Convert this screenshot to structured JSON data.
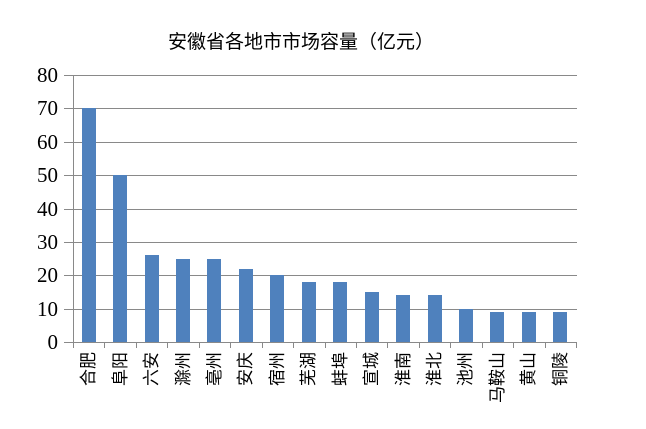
{
  "chart_data": {
    "type": "bar",
    "title": "安徽省各地市市场容量（亿元）",
    "categories": [
      "合肥",
      "阜阳",
      "六安",
      "滁州",
      "亳州",
      "安庆",
      "宿州",
      "芜湖",
      "蚌埠",
      "宣城",
      "淮南",
      "淮北",
      "池州",
      "马鞍山",
      "黄山",
      "铜陵"
    ],
    "values": [
      70,
      50,
      26,
      25,
      25,
      22,
      20,
      18,
      18,
      15,
      14,
      14,
      10,
      9,
      9,
      9
    ],
    "xlabel": "",
    "ylabel": "",
    "ylim": [
      0,
      80
    ],
    "yticks": [
      0,
      10,
      20,
      30,
      40,
      50,
      60,
      70,
      80
    ],
    "grid": true,
    "legend": false,
    "colors": {
      "bar": "#4f81bd",
      "gridline": "#898989",
      "text": "#000000",
      "background": "#ffffff"
    }
  }
}
